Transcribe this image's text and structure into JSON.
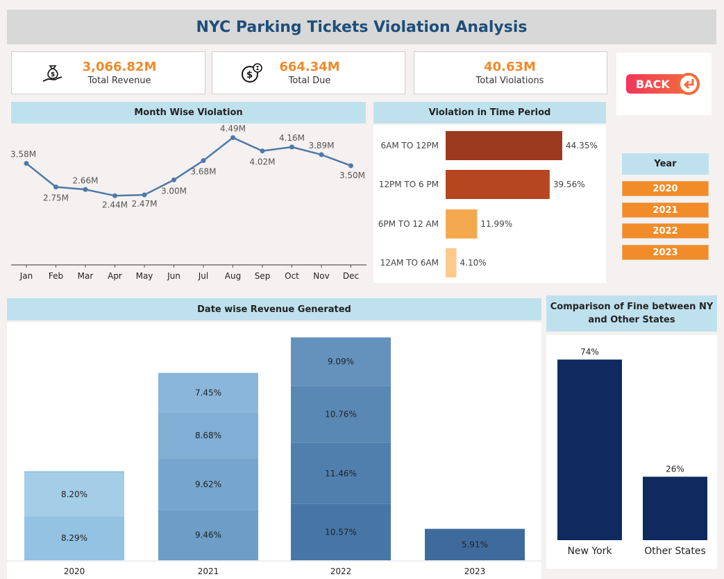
{
  "header": {
    "title": "NYC Parking Tickets Violation Analysis"
  },
  "kpis": [
    {
      "value": "3,066.82M",
      "label": "Total Revenue",
      "icon": "money-bag-hand-icon"
    },
    {
      "value": "664.34M",
      "label": "Total Due",
      "icon": "coins-clock-icon"
    },
    {
      "value": "40.63M",
      "label": "Total Violations",
      "icon": ""
    }
  ],
  "back": {
    "label": "BACK"
  },
  "year_filter": {
    "title": "Year",
    "options": [
      "2020",
      "2021",
      "2022",
      "2023"
    ]
  },
  "chart_data": [
    {
      "type": "line",
      "title": "Month Wise Violation",
      "categories": [
        "Jan",
        "Feb",
        "Mar",
        "Apr",
        "May",
        "Jun",
        "Jul",
        "Aug",
        "Sep",
        "Oct",
        "Nov",
        "Dec"
      ],
      "values": [
        3.58,
        2.75,
        2.66,
        2.44,
        2.47,
        3.0,
        3.68,
        4.49,
        4.02,
        4.16,
        3.89,
        3.5
      ],
      "labels": [
        "3.58M",
        "2.75M",
        "2.66M",
        "2.44M",
        "2.47M",
        "3.00M",
        "3.68M",
        "4.49M",
        "4.02M",
        "4.16M",
        "3.89M",
        "3.50M"
      ],
      "ylim": [
        0,
        4.6
      ],
      "color": "#4e79a7"
    },
    {
      "type": "bar",
      "orientation": "horizontal",
      "title": "Violation in Time Period",
      "categories": [
        "6AM TO 12PM",
        "12PM TO 6 PM",
        "6PM TO 12 AM",
        "12AM TO 6AM"
      ],
      "values": [
        44.35,
        39.56,
        11.99,
        4.1
      ],
      "labels": [
        "44.35%",
        "39.56%",
        "11.99%",
        "4.10%"
      ],
      "colors": [
        "#9c3a1f",
        "#b5461f",
        "#f5a94e",
        "#fdca8c"
      ]
    },
    {
      "type": "bar",
      "stacked": true,
      "title": "Date wise Revenue Generated",
      "categories": [
        "2020",
        "2021",
        "2022",
        "2023"
      ],
      "stacks": [
        {
          "segments": [
            {
              "value": 8.29,
              "label": "8.29%",
              "color": "#94c2e2"
            },
            {
              "value": 8.2,
              "label": "8.20%",
              "color": "#a4cde8"
            },
            {
              "value": 0.25,
              "label": "",
              "color": "#93c0e0"
            }
          ]
        },
        {
          "segments": [
            {
              "value": 9.46,
              "label": "9.46%",
              "color": "#6c9ec8"
            },
            {
              "value": 9.62,
              "label": "9.62%",
              "color": "#76a6cf"
            },
            {
              "value": 8.68,
              "label": "8.68%",
              "color": "#80aed5"
            },
            {
              "value": 7.45,
              "label": "7.45%",
              "color": "#8ab6db"
            }
          ]
        },
        {
          "segments": [
            {
              "value": 10.57,
              "label": "10.57%",
              "color": "#4676a6"
            },
            {
              "value": 11.46,
              "label": "11.46%",
              "color": "#507fae"
            },
            {
              "value": 10.76,
              "label": "10.76%",
              "color": "#5a88b5"
            },
            {
              "value": 9.09,
              "label": "9.09%",
              "color": "#6492bd"
            }
          ]
        },
        {
          "segments": [
            {
              "value": 5.91,
              "label": "5.91%",
              "color": "#3f6b9c"
            }
          ]
        }
      ],
      "ylim": [
        0,
        42.6
      ]
    },
    {
      "type": "bar",
      "title": "Comparison of Fine between NY and Other States",
      "categories": [
        "New York",
        "Other States"
      ],
      "values": [
        74,
        26
      ],
      "labels": [
        "74%",
        "26%"
      ],
      "color": "#0e2a5e",
      "ylim": [
        0,
        75
      ]
    }
  ]
}
